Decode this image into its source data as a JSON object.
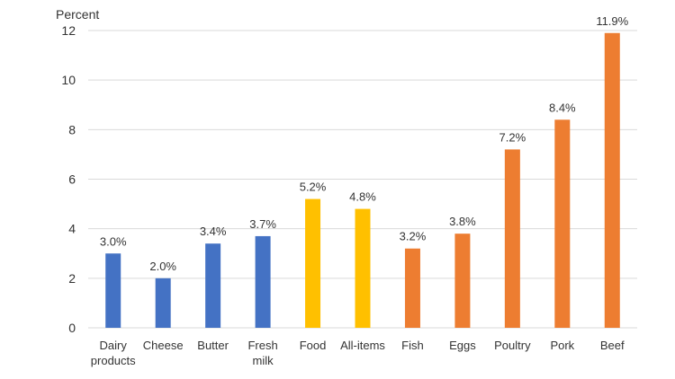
{
  "chart_data": {
    "type": "bar",
    "title": "",
    "xlabel": "",
    "ylabel": "Percent",
    "ylim": [
      0,
      12
    ],
    "yticks": [
      0,
      2,
      4,
      6,
      8,
      10,
      12
    ],
    "grid": true,
    "legend": "none",
    "categories": [
      [
        "Dairy",
        "products"
      ],
      [
        "Cheese"
      ],
      [
        "Butter"
      ],
      [
        "Fresh",
        "milk"
      ],
      [
        "Food"
      ],
      [
        "All-items"
      ],
      [
        "Fish"
      ],
      [
        "Eggs"
      ],
      [
        "Poultry"
      ],
      [
        "Pork"
      ],
      [
        "Beef"
      ]
    ],
    "values": [
      3.0,
      2.0,
      3.4,
      3.7,
      5.2,
      4.8,
      3.2,
      3.8,
      7.2,
      8.4,
      11.9
    ],
    "data_labels": [
      "3.0%",
      "2.0%",
      "3.4%",
      "3.7%",
      "5.2%",
      "4.8%",
      "3.2%",
      "3.8%",
      "7.2%",
      "8.4%",
      "11.9%"
    ],
    "bar_colors": [
      "#4472c4",
      "#4472c4",
      "#4472c4",
      "#4472c4",
      "#ffc000",
      "#ffc000",
      "#ed7d31",
      "#ed7d31",
      "#ed7d31",
      "#ed7d31",
      "#ed7d31"
    ]
  }
}
